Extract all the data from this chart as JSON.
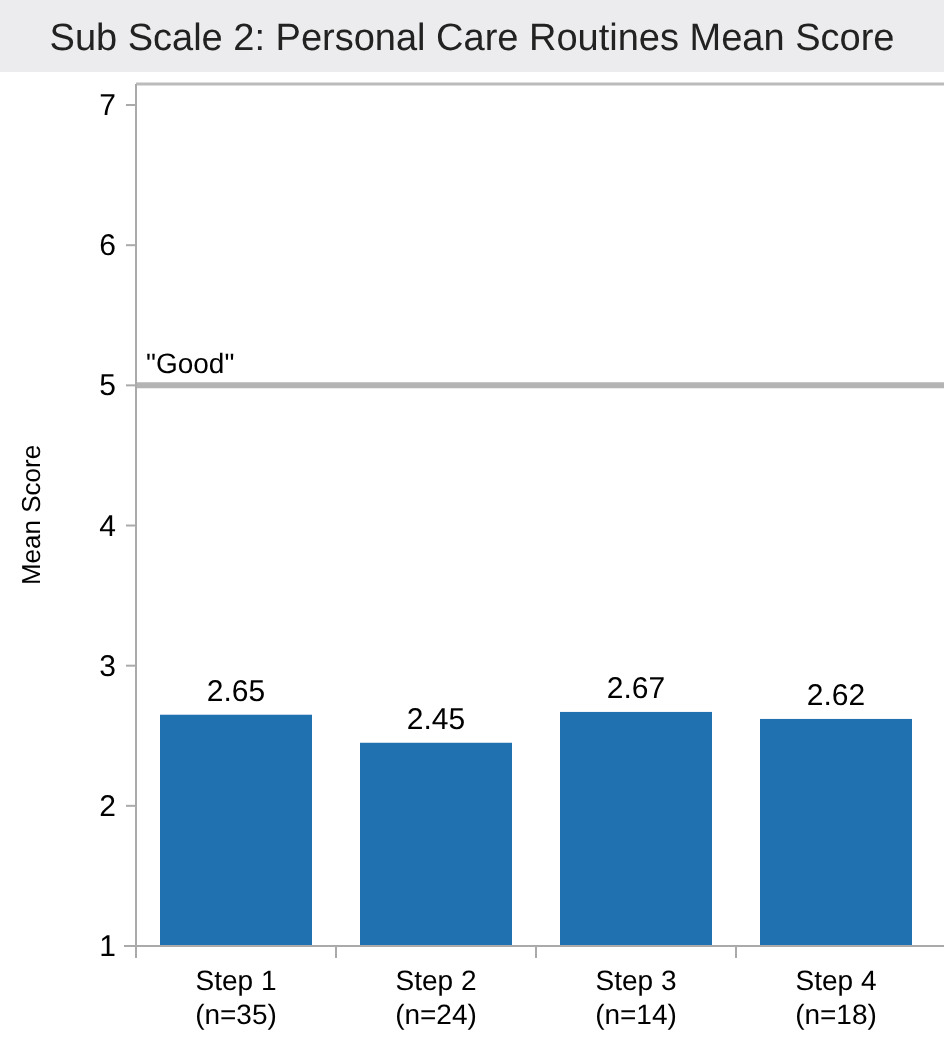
{
  "chart_data": {
    "type": "bar",
    "title": "Sub Scale 2: Personal Care Routines Mean Score",
    "ylabel": "Mean Score",
    "categories": [
      "Step 1\n(n=35)",
      "Step 2\n(n=24)",
      "Step 3\n(n=14)",
      "Step 4\n(n=18)"
    ],
    "values": [
      2.65,
      2.45,
      2.67,
      2.62
    ],
    "color": "#1f71b0",
    "ylim": [
      1,
      7.15
    ],
    "yticks": [
      1,
      2,
      3,
      4,
      5,
      6,
      7
    ],
    "grid": false,
    "data_labels": true,
    "ref_lines": [
      {
        "axis": "y",
        "value": 5,
        "label": "\"Good\"",
        "color": "#b4b4b4"
      }
    ]
  }
}
